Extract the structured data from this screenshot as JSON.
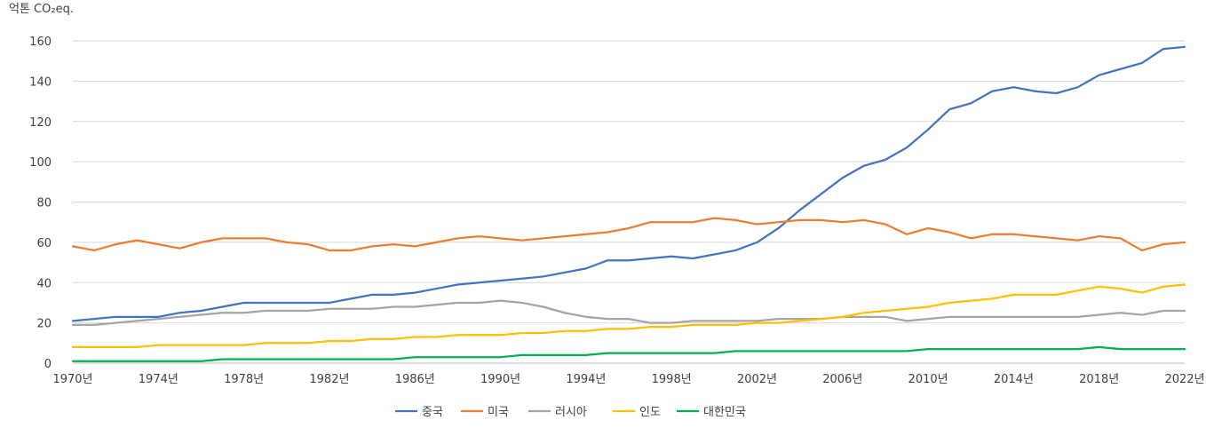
{
  "chart_data": {
    "type": "line",
    "y_unit_label": "억톤 CO₂eq.",
    "ylim": [
      0,
      160
    ],
    "y_ticks": [
      "0",
      "20",
      "40",
      "60",
      "80",
      "100",
      "120",
      "140",
      "160"
    ],
    "x_start_year": 1970,
    "x_end_year": 2022,
    "x_ticks": [
      "1970년",
      "1974년",
      "1978년",
      "1982년",
      "1986년",
      "1990년",
      "1994년",
      "1998년",
      "2002년",
      "2006년",
      "2010년",
      "2014년",
      "2018년",
      "2022년"
    ],
    "grid": true,
    "legend_position": "bottom",
    "series": [
      {
        "name": "중국",
        "color": "#4472c4",
        "values": [
          21,
          22,
          23,
          23,
          23,
          25,
          26,
          28,
          30,
          30,
          30,
          30,
          30,
          32,
          34,
          34,
          35,
          37,
          39,
          40,
          41,
          42,
          43,
          45,
          47,
          51,
          51,
          52,
          53,
          52,
          54,
          56,
          60,
          67,
          76,
          84,
          92,
          98,
          101,
          107,
          116,
          126,
          129,
          135,
          137,
          135,
          134,
          137,
          143,
          146,
          149,
          156,
          157
        ]
      },
      {
        "name": "미국",
        "color": "#ed7d31",
        "values": [
          58,
          56,
          59,
          61,
          59,
          57,
          60,
          62,
          62,
          62,
          60,
          59,
          56,
          56,
          58,
          59,
          58,
          60,
          62,
          63,
          62,
          61,
          62,
          63,
          64,
          65,
          67,
          70,
          70,
          70,
          72,
          71,
          69,
          70,
          71,
          71,
          70,
          71,
          69,
          64,
          67,
          65,
          62,
          64,
          64,
          63,
          62,
          61,
          63,
          62,
          56,
          59,
          60
        ]
      },
      {
        "name": "러시아",
        "color": "#a5a5a5",
        "values": [
          19,
          19,
          20,
          21,
          22,
          23,
          24,
          25,
          25,
          26,
          26,
          26,
          27,
          27,
          27,
          28,
          28,
          29,
          30,
          30,
          31,
          30,
          28,
          25,
          23,
          22,
          22,
          20,
          20,
          21,
          21,
          21,
          21,
          22,
          22,
          22,
          23,
          23,
          23,
          21,
          22,
          23,
          23,
          23,
          23,
          23,
          23,
          23,
          24,
          25,
          24,
          26,
          26
        ]
      },
      {
        "name": "인도",
        "color": "#ffc000",
        "values": [
          8,
          8,
          8,
          8,
          9,
          9,
          9,
          9,
          9,
          10,
          10,
          10,
          11,
          11,
          12,
          12,
          13,
          13,
          14,
          14,
          14,
          15,
          15,
          16,
          16,
          17,
          17,
          18,
          18,
          19,
          19,
          19,
          20,
          20,
          21,
          22,
          23,
          25,
          26,
          27,
          28,
          30,
          31,
          32,
          34,
          34,
          34,
          36,
          38,
          37,
          35,
          38,
          39
        ]
      },
      {
        "name": "대한민국",
        "color": "#00b050",
        "values": [
          1,
          1,
          1,
          1,
          1,
          1,
          1,
          2,
          2,
          2,
          2,
          2,
          2,
          2,
          2,
          2,
          3,
          3,
          3,
          3,
          3,
          4,
          4,
          4,
          4,
          5,
          5,
          5,
          5,
          5,
          5,
          6,
          6,
          6,
          6,
          6,
          6,
          6,
          6,
          6,
          7,
          7,
          7,
          7,
          7,
          7,
          7,
          7,
          8,
          7,
          7,
          7,
          7
        ]
      }
    ]
  }
}
